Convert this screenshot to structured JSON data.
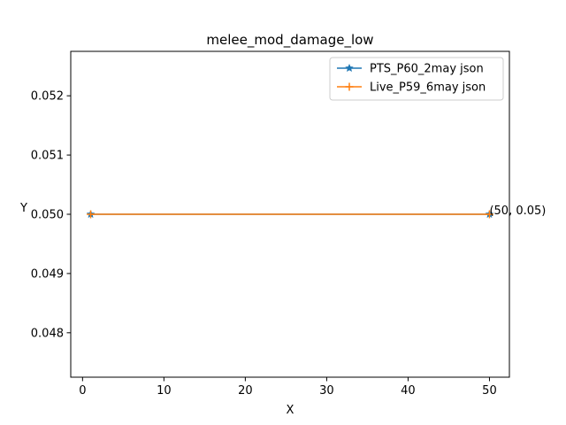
{
  "chart_data": {
    "type": "line",
    "title": "melee_mod_damage_low",
    "xlabel": "X",
    "ylabel": "Y",
    "xlim": [
      -1.45,
      52.45
    ],
    "ylim": [
      0.04725,
      0.05275
    ],
    "xticks": [
      0,
      10,
      20,
      30,
      40,
      50
    ],
    "yticks": [
      0.048,
      0.049,
      0.05,
      0.051,
      0.052
    ],
    "ytick_labels": [
      "0.048",
      "0.049",
      "0.050",
      "0.051",
      "0.052"
    ],
    "grid": false,
    "legend_position": "top-right",
    "series": [
      {
        "name": "PTS_P60_2may json",
        "color": "#1f77b4",
        "marker": "star",
        "x": [
          1,
          50
        ],
        "y": [
          0.05,
          0.05
        ]
      },
      {
        "name": "Live_P59_6may json",
        "color": "#ff7f0e",
        "marker": "plus",
        "x": [
          1,
          50
        ],
        "y": [
          0.05,
          0.05
        ]
      }
    ],
    "annotations": [
      {
        "text": "(50, 0.05)",
        "x": 50,
        "y": 0.05
      }
    ]
  }
}
